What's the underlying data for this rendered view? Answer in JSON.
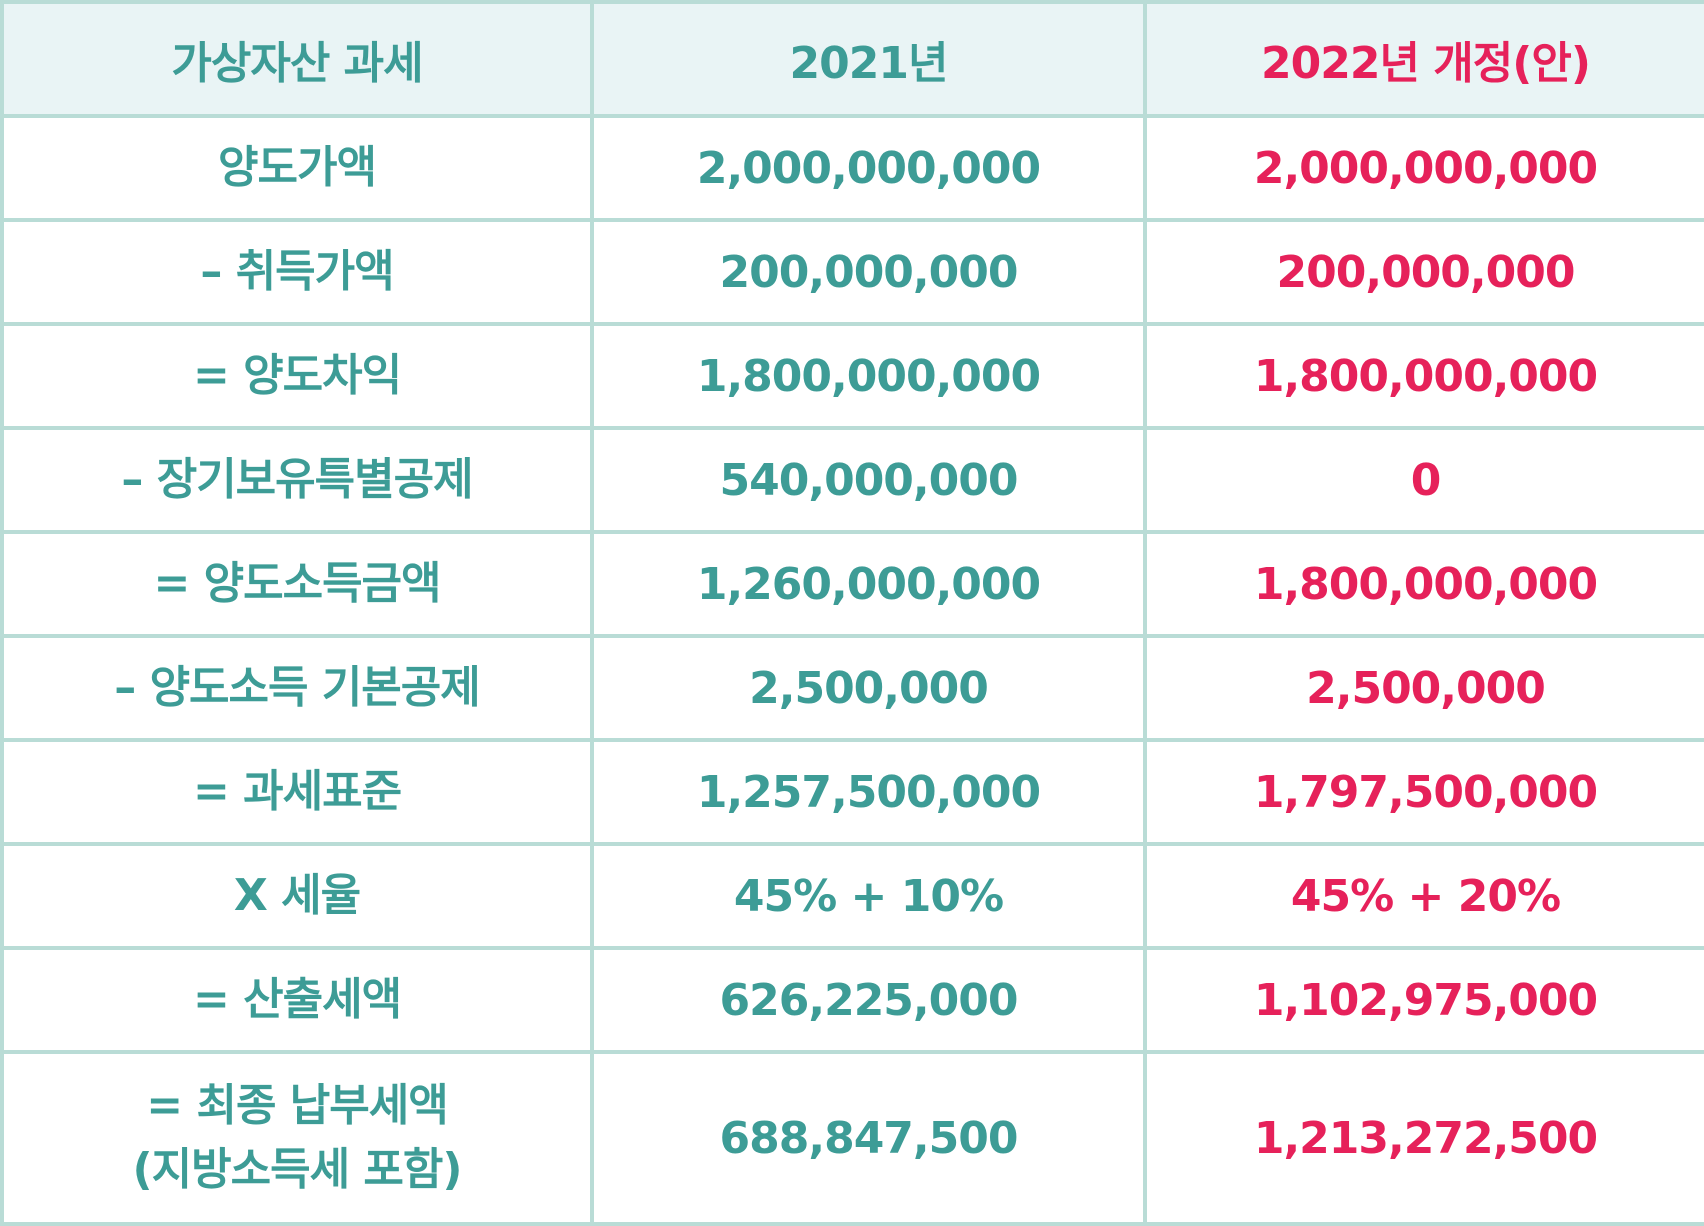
{
  "header": {
    "label": "가상자산 과세",
    "year_2021": "2021년",
    "year_2022": "2022년 개정(안)"
  },
  "rows": [
    {
      "label": "양도가액",
      "v2021": "2,000,000,000",
      "v2022": "2,000,000,000"
    },
    {
      "label": "– 취득가액",
      "v2021": "200,000,000",
      "v2022": "200,000,000"
    },
    {
      "label": "= 양도차익",
      "v2021": "1,800,000,000",
      "v2022": "1,800,000,000"
    },
    {
      "label": "– 장기보유특별공제",
      "v2021": "540,000,000",
      "v2022": "0"
    },
    {
      "label": "= 양도소득금액",
      "v2021": "1,260,000,000",
      "v2022": "1,800,000,000"
    },
    {
      "label": "– 양도소득 기본공제",
      "v2021": "2,500,000",
      "v2022": "2,500,000"
    },
    {
      "label": "= 과세표준",
      "v2021": "1,257,500,000",
      "v2022": "1,797,500,000"
    },
    {
      "label": "X 세율",
      "v2021": "45% + 10%",
      "v2022": "45% + 20%"
    },
    {
      "label": "= 산출세액",
      "v2021": "626,225,000",
      "v2022": "1,102,975,000"
    }
  ],
  "last_row": {
    "label_line1": "= 최종 납부세액",
    "label_line2": "(지방소득세 포함)",
    "v2021": "688,847,500",
    "v2022": "1,213,272,500"
  },
  "colors": {
    "teal": "#3d9c96",
    "red": "#e6215a",
    "header_bg": "#e9f4f5",
    "border": "#b9dcd6"
  }
}
